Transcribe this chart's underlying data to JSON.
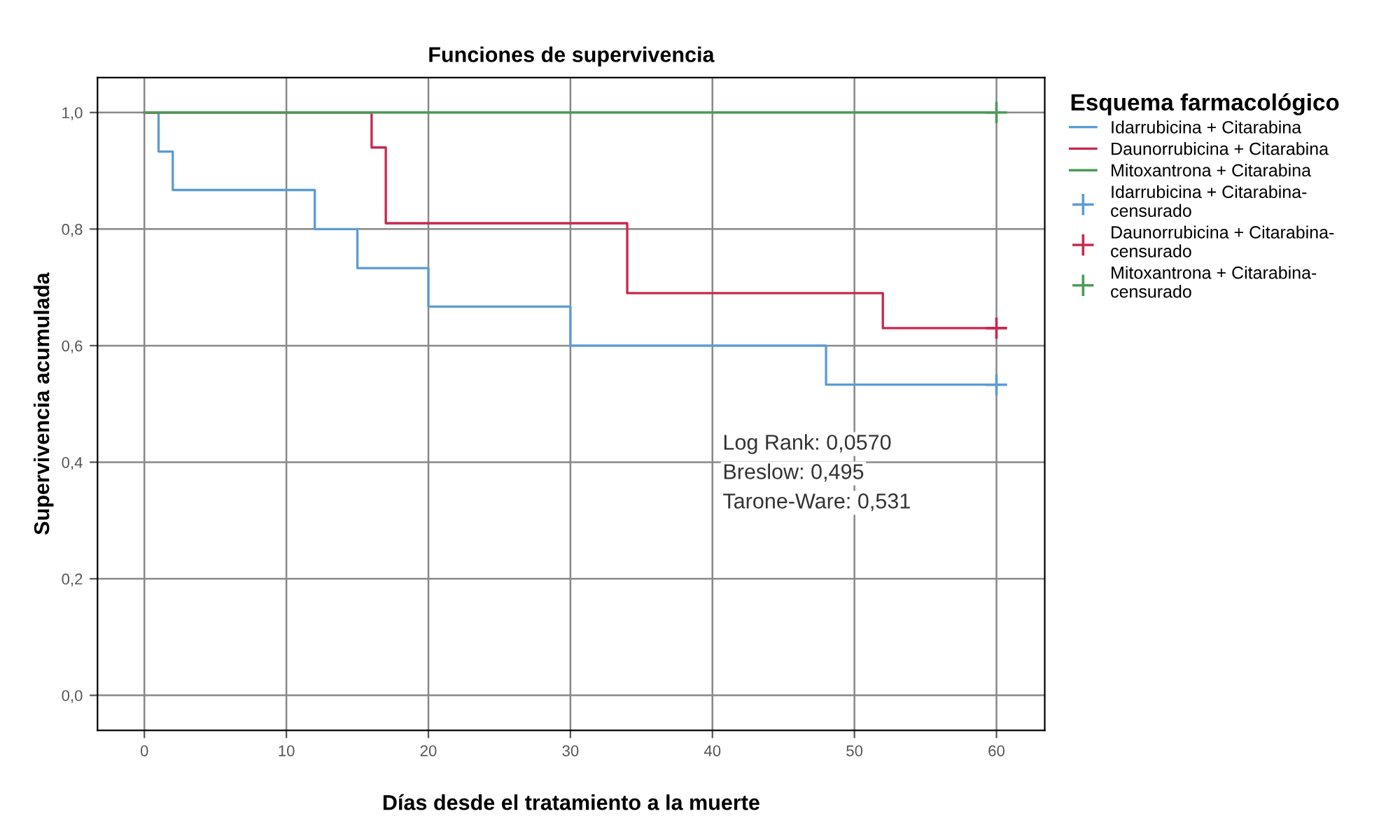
{
  "chart_data": {
    "type": "step",
    "title": "Funciones de supervivencia",
    "xlabel": "Días desde el tratamiento a la muerte",
    "ylabel": "Supervivencia acumulada",
    "legend_title": "Esquema farmacológico",
    "series": [
      {
        "name": "Idarrubicina + Citarabina",
        "color": "#5b9bd5",
        "x": [
          0,
          1,
          2,
          12,
          15,
          20,
          30,
          48,
          60
        ],
        "values": [
          1,
          0.933,
          0.867,
          0.8,
          0.733,
          0.667,
          0.6,
          0.533,
          0.533
        ]
      },
      {
        "name": "Daunorrubicina + Citarabina",
        "color": "#c8284f",
        "x": [
          0,
          16,
          17,
          34,
          52,
          60
        ],
        "values": [
          1,
          0.94,
          0.81,
          0.69,
          0.63,
          0.63
        ]
      },
      {
        "name": "Mitoxantrona + Citarabina",
        "color": "#4c9a58",
        "x": [
          0,
          60
        ],
        "values": [
          1,
          1
        ]
      },
      {
        "name": "Idarrubicina + Citarabina-censurado",
        "type": "scatter",
        "marker": "cross",
        "color": "#5b9bd5",
        "x": [
          60
        ],
        "values": [
          0.533
        ]
      },
      {
        "name": "Daunorrubicina + Citarabina-censurado",
        "type": "scatter",
        "marker": "cross",
        "color": "#c8284f",
        "x": [
          60
        ],
        "values": [
          0.63
        ]
      },
      {
        "name": "Mitoxantrona + Citarabina-censurado",
        "type": "scatter",
        "marker": "cross",
        "color": "#4c9a58",
        "x": [
          60
        ],
        "values": [
          1
        ]
      }
    ],
    "xlim": [
      -3.3,
      63.4
    ],
    "xticks": [
      0,
      10,
      20,
      30,
      40,
      50,
      60
    ],
    "ylim": [
      -0.06,
      1.06
    ],
    "yticks": [
      {
        "value": 0,
        "label": "0,0"
      },
      {
        "value": 0.2,
        "label": "0,2"
      },
      {
        "value": 0.4,
        "label": "0,4"
      },
      {
        "value": 0.6,
        "label": "0,6"
      },
      {
        "value": 0.8,
        "label": "0,8"
      },
      {
        "value": 1,
        "label": "1,0"
      }
    ],
    "grid": true,
    "legend": "right",
    "annotations": [
      "Log Rank: 0,0570",
      "Breslow: 0,495",
      "Tarone-Ware: 0,531"
    ]
  }
}
